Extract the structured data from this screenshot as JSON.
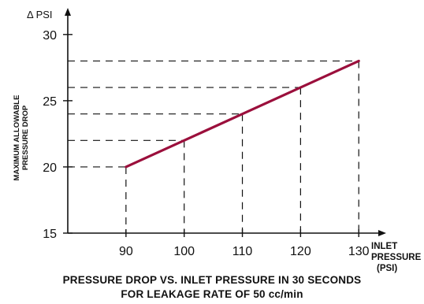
{
  "chart_data": {
    "type": "line",
    "y_axis_top_label": "Δ PSI",
    "ylabel_lines": [
      "MAXIMUM ALLOWABLE",
      "PRESSURE DROP"
    ],
    "xlabel_lines": [
      "INLET",
      "PRESSURE",
      "(PSI)"
    ],
    "xlim": [
      80,
      132
    ],
    "ylim": [
      15,
      31
    ],
    "x_ticks": [
      90,
      100,
      110,
      120,
      130
    ],
    "y_ticks": [
      15,
      20,
      25,
      30
    ],
    "grid": false,
    "series": [
      {
        "color": "#9b0f3c",
        "x": [
          90,
          100,
          110,
          120,
          130
        ],
        "y": [
          20,
          22,
          24,
          26,
          28
        ]
      }
    ],
    "reference_lines": "dashed guides from each point to both axes"
  },
  "caption": {
    "line1": "PRESSURE DROP VS. INLET PRESSURE IN 30 SECONDS",
    "line2": "FOR LEAKAGE RATE OF 50 cc/min"
  }
}
